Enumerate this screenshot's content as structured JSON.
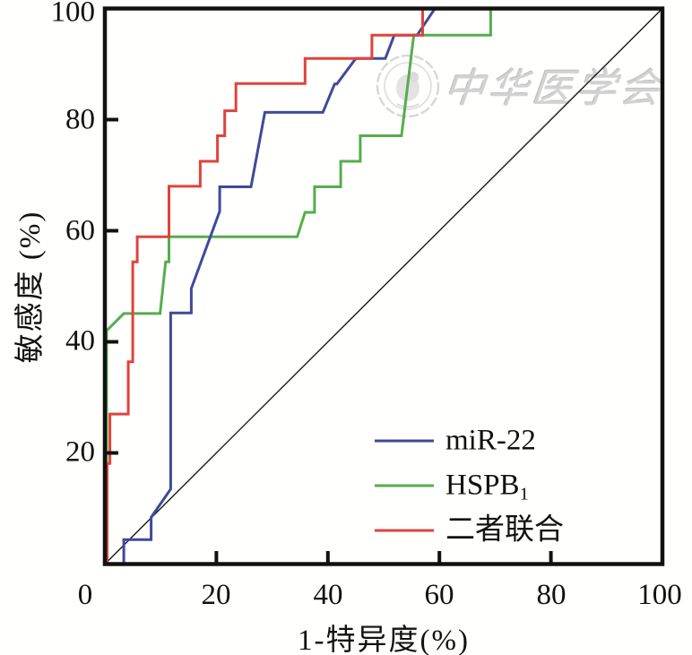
{
  "chart_data": {
    "type": "line",
    "subtype": "roc-step-curves",
    "title": "",
    "xlabel": "1-特异度(%)",
    "ylabel": "敏感度 (%)",
    "xlim": [
      0,
      100
    ],
    "ylim": [
      0,
      100
    ],
    "grid": false,
    "x_ticks": [
      0,
      20,
      40,
      60,
      80,
      100
    ],
    "y_ticks": [
      20,
      40,
      60,
      80,
      100
    ],
    "legend_position": "inside lower right",
    "series": [
      {
        "id": "mir-22",
        "name": "miR-22",
        "color": "#3e4a9a",
        "points": [
          [
            0,
            0
          ],
          [
            3.4,
            0
          ],
          [
            3.4,
            4.4
          ],
          [
            8.3,
            4.4
          ],
          [
            8.3,
            8.4
          ],
          [
            11.8,
            13.5
          ],
          [
            11.8,
            45.2
          ],
          [
            15.5,
            45.2
          ],
          [
            15.5,
            49.6
          ],
          [
            20.6,
            63.5
          ],
          [
            20.6,
            67.9
          ],
          [
            26.2,
            67.9
          ],
          [
            28.7,
            81.3
          ],
          [
            39.1,
            81.3
          ],
          [
            41.2,
            86.4
          ],
          [
            41.6,
            86.4
          ],
          [
            45,
            91
          ],
          [
            50.3,
            91
          ],
          [
            51.9,
            95.2
          ],
          [
            56,
            95.2
          ],
          [
            59.2,
            100
          ],
          [
            100,
            100
          ]
        ]
      },
      {
        "id": "hspb1",
        "name": "HSPB1",
        "color": "#56ad4d",
        "points": [
          [
            0,
            0
          ],
          [
            0.3,
            0
          ],
          [
            0.3,
            42
          ],
          [
            3.4,
            45.1
          ],
          [
            9.9,
            45.1
          ],
          [
            10.9,
            54.4
          ],
          [
            11.5,
            54.4
          ],
          [
            11.5,
            58.9
          ],
          [
            34.5,
            58.9
          ],
          [
            35.9,
            63.3
          ],
          [
            37.6,
            63.3
          ],
          [
            37.6,
            67.9
          ],
          [
            42.3,
            67.9
          ],
          [
            42.3,
            72.5
          ],
          [
            45.8,
            72.5
          ],
          [
            45.8,
            77.1
          ],
          [
            53.2,
            77.1
          ],
          [
            55.4,
            95.2
          ],
          [
            69.2,
            95.2
          ],
          [
            69.2,
            100
          ],
          [
            100,
            100
          ]
        ]
      },
      {
        "id": "combined",
        "name": "二者联合",
        "color": "#e0433c",
        "points": [
          [
            0,
            0
          ],
          [
            0.4,
            0
          ],
          [
            0.4,
            18.1
          ],
          [
            0.9,
            18.1
          ],
          [
            0.9,
            27
          ],
          [
            4.2,
            27
          ],
          [
            4.2,
            36.4
          ],
          [
            5,
            36.4
          ],
          [
            5,
            54.4
          ],
          [
            5.8,
            54.4
          ],
          [
            5.8,
            58.9
          ],
          [
            11.5,
            58.9
          ],
          [
            11.5,
            68
          ],
          [
            17.1,
            68
          ],
          [
            17.1,
            72.5
          ],
          [
            20.2,
            72.5
          ],
          [
            20.2,
            77.1
          ],
          [
            21.5,
            77.1
          ],
          [
            21.5,
            81.6
          ],
          [
            23.5,
            81.6
          ],
          [
            23.5,
            86.5
          ],
          [
            35.9,
            86.5
          ],
          [
            35.9,
            91
          ],
          [
            47.9,
            91
          ],
          [
            47.9,
            95.2
          ],
          [
            57,
            95.2
          ],
          [
            57,
            100
          ],
          [
            100,
            100
          ]
        ]
      }
    ],
    "reference_line": {
      "name": "chance-diagonal",
      "color": "#1a1a1a",
      "points": [
        [
          0,
          0
        ],
        [
          100,
          100
        ]
      ]
    }
  },
  "legend": {
    "items": [
      {
        "label": "miR-22"
      },
      {
        "label_base": "HSPB",
        "label_sub": "1"
      },
      {
        "label": "二者联合"
      }
    ]
  },
  "watermark": {
    "text": "中华医学会",
    "seal": "chinese-medical-association-seal"
  }
}
